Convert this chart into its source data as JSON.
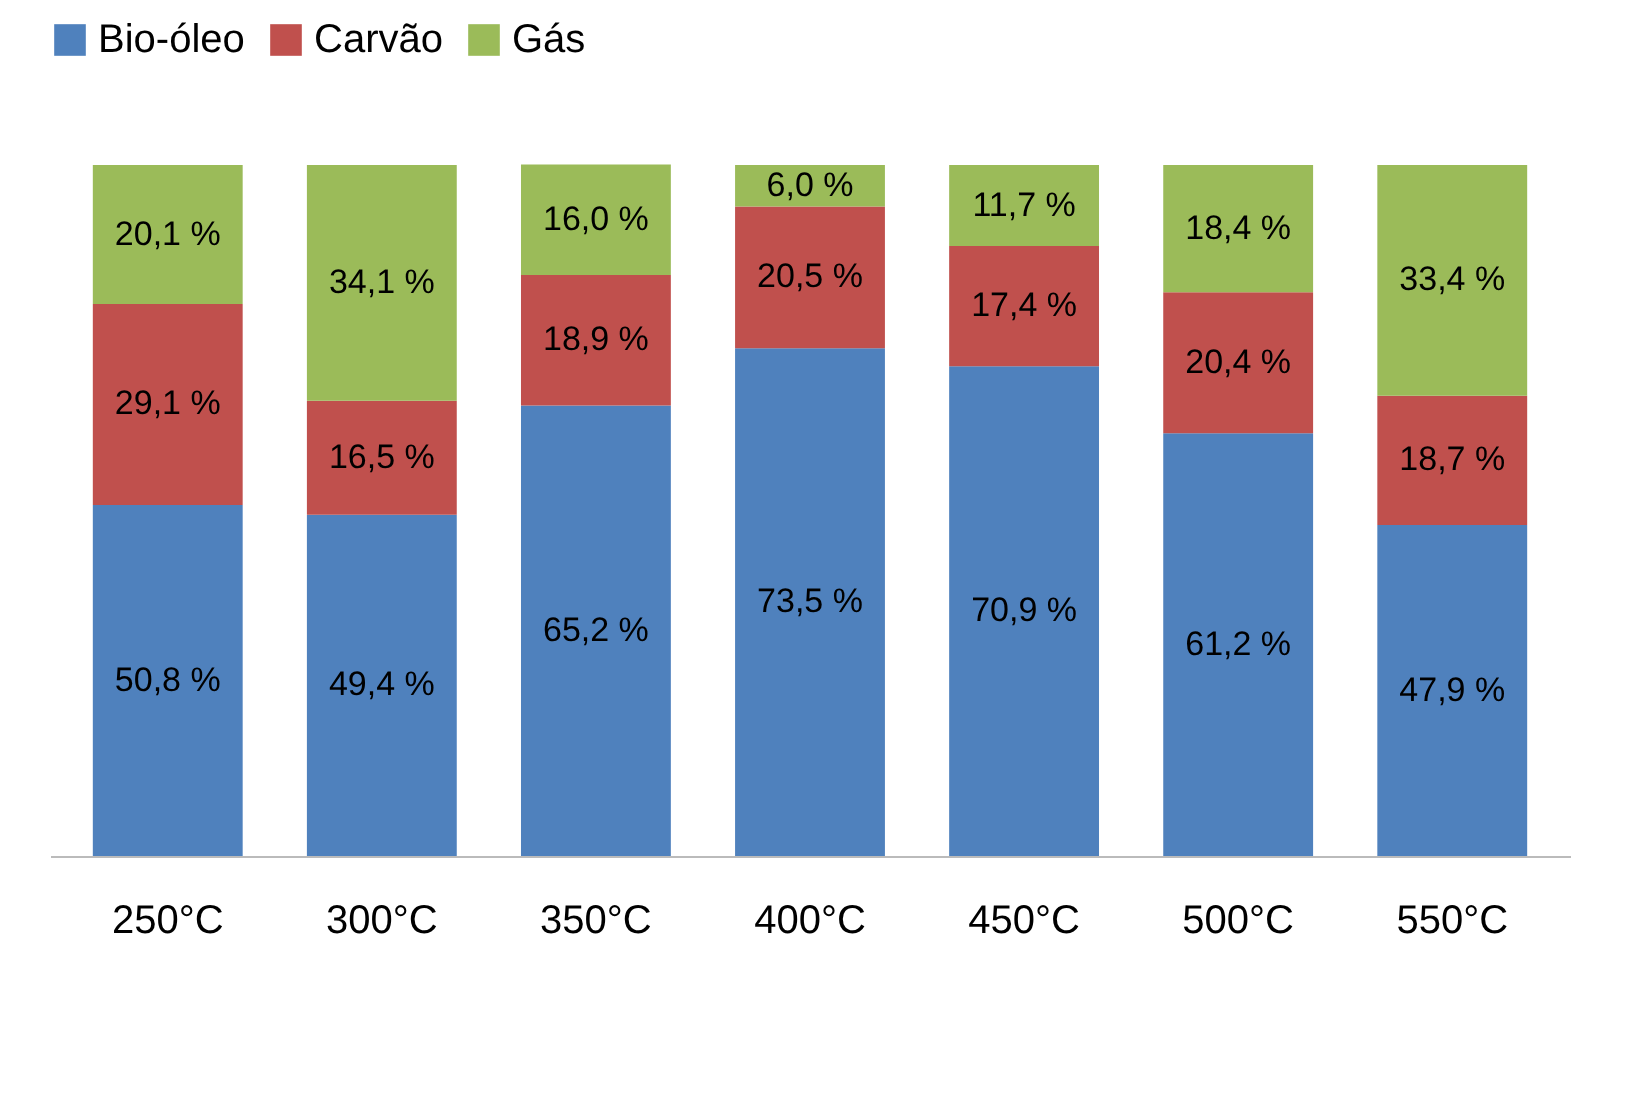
{
  "chart_data": {
    "type": "bar",
    "stacked": true,
    "legend": "top",
    "tick_labels": "x",
    "categories": [
      "250°C",
      "300°C",
      "350°C",
      "400°C",
      "450°C",
      "500°C",
      "550°C"
    ],
    "series": [
      {
        "name": "Bio-óleo",
        "color": "#4f81bd",
        "values": [
          50.8,
          49.4,
          65.2,
          73.5,
          70.9,
          61.2,
          47.9
        ],
        "value_labels": [
          "50,8 %",
          "49,4 %",
          "65,2 %",
          "73,5 %",
          "70,9 %",
          "61,2 %",
          "47,9 %"
        ]
      },
      {
        "name": "Carvão",
        "color": "#c0504d",
        "values": [
          29.1,
          16.5,
          18.9,
          20.5,
          17.4,
          20.4,
          18.7
        ],
        "value_labels": [
          "29,1 %",
          "16,5 %",
          "18,9 %",
          "20,5 %",
          "17,4 %",
          "20,4 %",
          "18,7 %"
        ]
      },
      {
        "name": "Gás",
        "color": "#9bbb59",
        "values": [
          20.1,
          34.1,
          16.0,
          6.0,
          11.7,
          18.4,
          33.4
        ],
        "value_labels": [
          "20,1 %",
          "34,1 %",
          "16,0 %",
          "6,0 %",
          "11,7 %",
          "18,4 %",
          "33,4 %"
        ]
      }
    ]
  }
}
